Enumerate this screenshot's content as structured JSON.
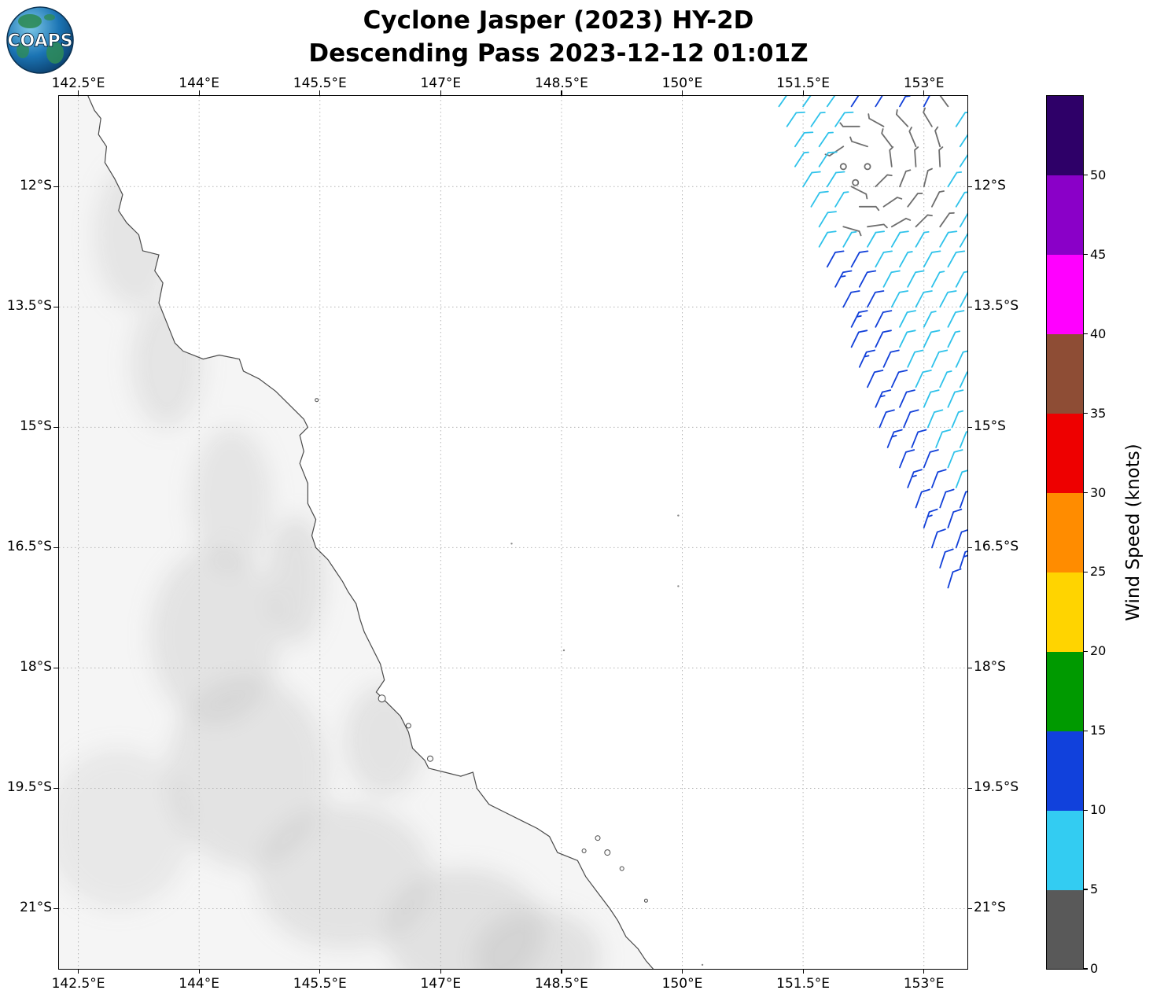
{
  "header": {
    "title_line1": "Cyclone Jasper (2023) HY-2D",
    "title_line2": "Descending Pass 2023-12-12 01:01Z",
    "logo_text": "COAPS"
  },
  "chart_data": {
    "type": "map-windbarb",
    "title": "Cyclone Jasper (2023) HY-2D",
    "subtitle": "Descending Pass 2023-12-12 01:01Z",
    "satellite": "HY-2D",
    "pass_type": "Descending",
    "datetime_utc": "2023-12-12 01:01Z",
    "projection": {
      "lon_range": [
        142.26,
        153.54
      ],
      "lat_range": [
        10.87,
        21.75
      ]
    },
    "x_axis": {
      "tick_labels": [
        "142.5°E",
        "144°E",
        "145.5°E",
        "147°E",
        "148.5°E",
        "150°E",
        "151.5°E",
        "153°E"
      ],
      "tick_values": [
        142.5,
        144,
        145.5,
        147,
        148.5,
        150,
        151.5,
        153
      ]
    },
    "y_axis": {
      "tick_labels": [
        "12°S",
        "13.5°S",
        "15°S",
        "16.5°S",
        "18°S",
        "19.5°S",
        "21°S"
      ],
      "tick_values": [
        12,
        13.5,
        15,
        16.5,
        18,
        19.5,
        21
      ]
    },
    "grid": "dotted",
    "colorbar": {
      "label": "Wind Speed (knots)",
      "tick_values": [
        0,
        5,
        10,
        15,
        20,
        25,
        30,
        35,
        40,
        45,
        50
      ],
      "vmin": 0,
      "vmax": 55,
      "colors_bottom_to_top": [
        "#595959",
        "#33ccf2",
        "#1141dc",
        "#009a00",
        "#ffd400",
        "#ff8c00",
        "#ee0000",
        "#8e4d35",
        "#ff00ff",
        "#8a00c8",
        "#2e0068"
      ]
    },
    "wind_barbs": {
      "format": [
        "lon",
        "lat",
        "staff_angle_deg",
        "speed_knots",
        "color_index"
      ],
      "color_map": [
        "#6e6e6e",
        "#2ec2ea",
        "#1240d9"
      ],
      "color_bins_knots": [
        "0-5",
        "5-10",
        "10-15"
      ],
      "points": [
        [
          151.2,
          11.0,
          35,
          8,
          1
        ],
        [
          151.5,
          11.0,
          35,
          10,
          1
        ],
        [
          151.8,
          11.0,
          35,
          10,
          1
        ],
        [
          152.1,
          11.0,
          33,
          12,
          2
        ],
        [
          152.4,
          11.0,
          32,
          12,
          2
        ],
        [
          152.7,
          11.0,
          30,
          15,
          2
        ],
        [
          153.0,
          11.0,
          28,
          12,
          2
        ],
        [
          153.3,
          11.0,
          -36,
          4,
          0
        ],
        [
          151.3,
          11.25,
          34,
          10,
          1
        ],
        [
          151.6,
          11.25,
          34,
          8,
          1
        ],
        [
          151.9,
          11.25,
          34,
          10,
          1
        ],
        [
          152.2,
          11.25,
          -90,
          4,
          0
        ],
        [
          152.5,
          11.25,
          -61,
          4,
          0
        ],
        [
          152.8,
          11.25,
          -43,
          4,
          0
        ],
        [
          153.1,
          11.25,
          -31,
          4,
          0
        ],
        [
          153.4,
          11.25,
          33,
          10,
          1
        ],
        [
          151.4,
          11.5,
          34,
          10,
          1
        ],
        [
          151.7,
          11.5,
          34,
          8,
          1
        ],
        [
          152.0,
          11.5,
          -124,
          4,
          0
        ],
        [
          152.3,
          11.5,
          -72,
          4,
          0
        ],
        [
          152.6,
          11.5,
          -37,
          4,
          0
        ],
        [
          152.9,
          11.5,
          -23,
          4,
          0
        ],
        [
          153.2,
          11.5,
          -17,
          4,
          0
        ],
        [
          153.45,
          11.5,
          33,
          10,
          1
        ],
        [
          151.4,
          11.75,
          33,
          8,
          1
        ],
        [
          151.7,
          11.75,
          33,
          10,
          1
        ],
        [
          152.0,
          11.75,
          0,
          0,
          0
        ],
        [
          152.3,
          11.75,
          0,
          0,
          0
        ],
        [
          152.6,
          11.75,
          -7,
          4,
          0
        ],
        [
          152.9,
          11.75,
          -4,
          4,
          0
        ],
        [
          153.2,
          11.75,
          -3,
          4,
          0
        ],
        [
          153.45,
          11.75,
          33,
          10,
          1
        ],
        [
          152.15,
          11.95,
          0,
          0,
          0
        ],
        [
          151.5,
          12.0,
          32,
          10,
          1
        ],
        [
          151.8,
          12.0,
          32,
          10,
          1
        ],
        [
          152.1,
          12.0,
          117,
          4,
          0
        ],
        [
          152.4,
          12.0,
          45,
          4,
          0
        ],
        [
          152.7,
          12.0,
          22,
          4,
          0
        ],
        [
          153.0,
          12.0,
          14,
          4,
          0
        ],
        [
          153.3,
          12.0,
          32,
          8,
          1
        ],
        [
          151.6,
          12.25,
          31,
          10,
          1
        ],
        [
          151.9,
          12.25,
          31,
          8,
          1
        ],
        [
          152.2,
          12.25,
          90,
          4,
          0
        ],
        [
          152.5,
          12.25,
          56,
          4,
          0
        ],
        [
          152.8,
          12.25,
          37,
          4,
          0
        ],
        [
          153.1,
          12.25,
          27,
          4,
          0
        ],
        [
          153.4,
          12.25,
          31,
          10,
          1
        ],
        [
          151.7,
          12.5,
          31,
          10,
          1
        ],
        [
          152.0,
          12.5,
          106,
          4,
          0
        ],
        [
          152.3,
          12.5,
          82,
          4,
          0
        ],
        [
          152.6,
          12.5,
          60,
          4,
          0
        ],
        [
          152.9,
          12.5,
          45,
          4,
          0
        ],
        [
          153.2,
          12.5,
          35,
          4,
          0
        ],
        [
          153.45,
          12.5,
          30,
          10,
          1
        ],
        [
          151.7,
          12.75,
          30,
          10,
          1
        ],
        [
          152.0,
          12.75,
          30,
          8,
          1
        ],
        [
          152.3,
          12.75,
          30,
          10,
          1
        ],
        [
          152.6,
          12.75,
          30,
          10,
          1
        ],
        [
          152.9,
          12.75,
          30,
          8,
          1
        ],
        [
          153.2,
          12.75,
          30,
          10,
          1
        ],
        [
          153.45,
          12.75,
          30,
          10,
          1
        ],
        [
          151.8,
          13.0,
          29,
          12,
          2
        ],
        [
          152.1,
          13.0,
          29,
          12,
          2
        ],
        [
          152.4,
          13.0,
          29,
          10,
          1
        ],
        [
          152.7,
          13.0,
          29,
          8,
          1
        ],
        [
          153.0,
          13.0,
          29,
          10,
          1
        ],
        [
          153.3,
          13.0,
          29,
          10,
          1
        ],
        [
          151.9,
          13.25,
          28,
          15,
          2
        ],
        [
          152.2,
          13.25,
          28,
          12,
          2
        ],
        [
          152.5,
          13.25,
          28,
          10,
          1
        ],
        [
          152.8,
          13.25,
          28,
          10,
          1
        ],
        [
          153.1,
          13.25,
          28,
          8,
          1
        ],
        [
          153.4,
          13.25,
          28,
          10,
          1
        ],
        [
          152.0,
          13.5,
          28,
          12,
          2
        ],
        [
          152.3,
          13.5,
          28,
          12,
          2
        ],
        [
          152.6,
          13.5,
          28,
          10,
          1
        ],
        [
          152.9,
          13.5,
          28,
          10,
          1
        ],
        [
          153.2,
          13.5,
          28,
          10,
          1
        ],
        [
          153.45,
          13.5,
          28,
          8,
          1
        ],
        [
          152.1,
          13.75,
          27,
          15,
          2
        ],
        [
          152.4,
          13.75,
          27,
          12,
          2
        ],
        [
          152.7,
          13.75,
          27,
          10,
          1
        ],
        [
          153.0,
          13.75,
          27,
          8,
          1
        ],
        [
          153.3,
          13.75,
          27,
          10,
          1
        ],
        [
          152.1,
          14.0,
          26,
          12,
          2
        ],
        [
          152.4,
          14.0,
          26,
          12,
          2
        ],
        [
          152.7,
          14.0,
          26,
          10,
          1
        ],
        [
          153.0,
          14.0,
          26,
          10,
          1
        ],
        [
          153.3,
          14.0,
          26,
          8,
          1
        ],
        [
          152.2,
          14.25,
          25,
          15,
          2
        ],
        [
          152.5,
          14.25,
          25,
          12,
          2
        ],
        [
          152.8,
          14.25,
          25,
          10,
          1
        ],
        [
          153.1,
          14.25,
          25,
          10,
          1
        ],
        [
          153.4,
          14.25,
          25,
          10,
          1
        ],
        [
          152.3,
          14.5,
          25,
          12,
          2
        ],
        [
          152.6,
          14.5,
          25,
          12,
          2
        ],
        [
          152.9,
          14.5,
          25,
          10,
          1
        ],
        [
          153.2,
          14.5,
          25,
          8,
          1
        ],
        [
          153.45,
          14.5,
          25,
          10,
          1
        ],
        [
          152.4,
          14.75,
          24,
          15,
          2
        ],
        [
          152.7,
          14.75,
          24,
          12,
          2
        ],
        [
          153.0,
          14.75,
          24,
          10,
          1
        ],
        [
          153.3,
          14.75,
          24,
          10,
          1
        ],
        [
          152.45,
          15.0,
          23,
          12,
          2
        ],
        [
          152.75,
          15.0,
          23,
          12,
          2
        ],
        [
          153.05,
          15.0,
          23,
          10,
          1
        ],
        [
          153.35,
          15.0,
          23,
          8,
          1
        ],
        [
          152.55,
          15.25,
          22,
          15,
          2
        ],
        [
          152.85,
          15.25,
          22,
          12,
          2
        ],
        [
          153.15,
          15.25,
          22,
          10,
          1
        ],
        [
          153.45,
          15.25,
          22,
          10,
          1
        ],
        [
          152.7,
          15.5,
          22,
          12,
          2
        ],
        [
          153.0,
          15.5,
          22,
          12,
          2
        ],
        [
          153.3,
          15.5,
          22,
          10,
          1
        ],
        [
          152.8,
          15.75,
          21,
          15,
          2
        ],
        [
          153.1,
          15.75,
          21,
          12,
          2
        ],
        [
          153.4,
          15.75,
          21,
          10,
          1
        ],
        [
          152.9,
          16.0,
          20,
          12,
          2
        ],
        [
          153.2,
          16.0,
          20,
          12,
          2
        ],
        [
          153.45,
          16.0,
          20,
          12,
          2
        ],
        [
          153.0,
          16.25,
          19,
          15,
          2
        ],
        [
          153.3,
          16.25,
          19,
          12,
          2
        ],
        [
          153.1,
          16.5,
          19,
          12,
          2
        ],
        [
          153.4,
          16.5,
          19,
          12,
          2
        ],
        [
          153.2,
          16.75,
          18,
          12,
          2
        ],
        [
          153.45,
          16.75,
          18,
          15,
          2
        ],
        [
          153.3,
          17.0,
          17,
          12,
          2
        ]
      ]
    },
    "coastline": [
      [
        142.62,
        10.87
      ],
      [
        142.7,
        11.05
      ],
      [
        142.78,
        11.15
      ],
      [
        142.75,
        11.35
      ],
      [
        142.85,
        11.5
      ],
      [
        142.83,
        11.7
      ],
      [
        142.95,
        11.9
      ],
      [
        143.05,
        12.1
      ],
      [
        143.0,
        12.3
      ],
      [
        143.1,
        12.45
      ],
      [
        143.25,
        12.6
      ],
      [
        143.3,
        12.8
      ],
      [
        143.5,
        12.85
      ],
      [
        143.45,
        13.05
      ],
      [
        143.55,
        13.2
      ],
      [
        143.5,
        13.45
      ],
      [
        143.6,
        13.7
      ],
      [
        143.7,
        13.95
      ],
      [
        143.8,
        14.05
      ],
      [
        144.05,
        14.15
      ],
      [
        144.25,
        14.1
      ],
      [
        144.5,
        14.15
      ],
      [
        144.55,
        14.3
      ],
      [
        144.75,
        14.4
      ],
      [
        144.95,
        14.55
      ],
      [
        145.1,
        14.7
      ],
      [
        145.3,
        14.9
      ],
      [
        145.35,
        15.0
      ],
      [
        145.25,
        15.1
      ],
      [
        145.3,
        15.3
      ],
      [
        145.25,
        15.45
      ],
      [
        145.35,
        15.7
      ],
      [
        145.35,
        15.95
      ],
      [
        145.45,
        16.15
      ],
      [
        145.4,
        16.35
      ],
      [
        145.45,
        16.5
      ],
      [
        145.6,
        16.65
      ],
      [
        145.7,
        16.8
      ],
      [
        145.78,
        16.92
      ],
      [
        145.85,
        17.05
      ],
      [
        145.95,
        17.2
      ],
      [
        146.0,
        17.4
      ],
      [
        146.05,
        17.55
      ],
      [
        146.15,
        17.75
      ],
      [
        146.25,
        17.95
      ],
      [
        146.3,
        18.15
      ],
      [
        146.2,
        18.3
      ],
      [
        146.35,
        18.45
      ],
      [
        146.5,
        18.6
      ],
      [
        146.6,
        18.8
      ],
      [
        146.65,
        19.0
      ],
      [
        146.8,
        19.15
      ],
      [
        146.85,
        19.25
      ],
      [
        147.05,
        19.3
      ],
      [
        147.25,
        19.35
      ],
      [
        147.4,
        19.3
      ],
      [
        147.45,
        19.5
      ],
      [
        147.6,
        19.7
      ],
      [
        147.8,
        19.8
      ],
      [
        148.0,
        19.9
      ],
      [
        148.2,
        20.0
      ],
      [
        148.35,
        20.1
      ],
      [
        148.45,
        20.3
      ],
      [
        148.7,
        20.4
      ],
      [
        148.8,
        20.6
      ],
      [
        148.95,
        20.8
      ],
      [
        149.1,
        21.0
      ],
      [
        149.2,
        21.15
      ],
      [
        149.3,
        21.35
      ],
      [
        149.45,
        21.5
      ],
      [
        149.55,
        21.65
      ],
      [
        149.68,
        21.8
      ]
    ],
    "islands": [
      [
        146.27,
        18.38,
        4.5
      ],
      [
        146.6,
        18.72,
        3
      ],
      [
        146.87,
        19.13,
        3.5
      ],
      [
        148.95,
        20.12,
        3
      ],
      [
        149.07,
        20.3,
        3.5
      ],
      [
        148.78,
        20.28,
        2.5
      ],
      [
        149.25,
        20.5,
        2.5
      ],
      [
        149.55,
        20.9,
        2
      ],
      [
        145.46,
        14.66,
        2
      ]
    ],
    "reef_dots": [
      [
        149.95,
        16.1
      ],
      [
        147.88,
        16.45
      ],
      [
        149.95,
        16.98
      ],
      [
        148.53,
        17.78
      ],
      [
        150.25,
        21.7
      ]
    ],
    "terrain_shading": [
      [
        143.2,
        12.6,
        0.5,
        0.9,
        0.25
      ],
      [
        143.6,
        14.2,
        0.45,
        0.8,
        0.28
      ],
      [
        144.4,
        15.9,
        0.5,
        0.9,
        0.25
      ],
      [
        144.2,
        17.6,
        0.8,
        1.1,
        0.3
      ],
      [
        145.2,
        16.9,
        0.35,
        0.8,
        0.32
      ],
      [
        144.6,
        19.3,
        1.0,
        1.2,
        0.3
      ],
      [
        145.8,
        20.6,
        1.1,
        0.9,
        0.3
      ],
      [
        147.3,
        21.3,
        1.0,
        0.8,
        0.33
      ],
      [
        146.3,
        18.9,
        0.5,
        0.7,
        0.3
      ],
      [
        148.2,
        21.6,
        0.8,
        0.6,
        0.33
      ],
      [
        143.0,
        20.0,
        0.9,
        1.0,
        0.22
      ]
    ],
    "map_colors": {
      "land_fill": "#f5f5f5",
      "coast_stroke": "#4a4a4a",
      "gridline": "#b5b5b5"
    }
  }
}
